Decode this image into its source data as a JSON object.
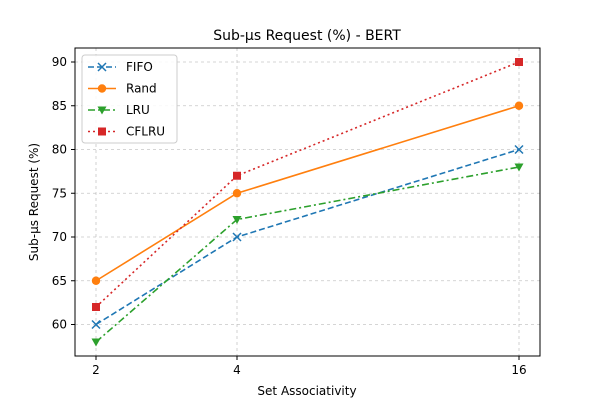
{
  "chart_data": {
    "type": "line",
    "title": "Sub-µs Request (%) - BERT",
    "xlabel": "Set Associativity",
    "ylabel": "Sub-µs Request (%)",
    "x": [
      2,
      4,
      16
    ],
    "x_tick_labels": [
      "2",
      "4",
      "16"
    ],
    "x_scale": "log2",
    "ylim": [
      56.4,
      91.6
    ],
    "y_ticks": [
      60,
      65,
      70,
      75,
      80,
      85,
      90
    ],
    "grid": true,
    "legend_position": "top-left",
    "series": [
      {
        "name": "FIFO",
        "values": [
          60,
          70,
          80
        ],
        "color": "#1f77b4",
        "line_style": "dashed",
        "marker": "x"
      },
      {
        "name": "Rand",
        "values": [
          65,
          75,
          85
        ],
        "color": "#ff7f0e",
        "line_style": "solid",
        "marker": "circle"
      },
      {
        "name": "LRU",
        "values": [
          58,
          72,
          78
        ],
        "color": "#2ca02c",
        "line_style": "dashdot",
        "marker": "triangle-down"
      },
      {
        "name": "CFLRU",
        "values": [
          62,
          77,
          90
        ],
        "color": "#d62728",
        "line_style": "dotted",
        "marker": "square"
      }
    ]
  }
}
